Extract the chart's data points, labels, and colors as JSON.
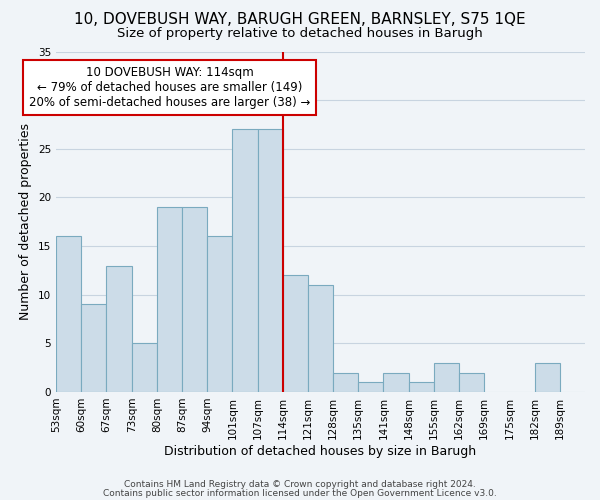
{
  "title": "10, DOVEBUSH WAY, BARUGH GREEN, BARNSLEY, S75 1QE",
  "subtitle": "Size of property relative to detached houses in Barugh",
  "xlabel": "Distribution of detached houses by size in Barugh",
  "ylabel": "Number of detached properties",
  "bar_color": "#ccdce8",
  "bar_edge_color": "#7aaabf",
  "categories": [
    "53sqm",
    "60sqm",
    "67sqm",
    "73sqm",
    "80sqm",
    "87sqm",
    "94sqm",
    "101sqm",
    "107sqm",
    "114sqm",
    "121sqm",
    "128sqm",
    "135sqm",
    "141sqm",
    "148sqm",
    "155sqm",
    "162sqm",
    "169sqm",
    "175sqm",
    "182sqm",
    "189sqm"
  ],
  "values": [
    16,
    9,
    13,
    5,
    19,
    19,
    16,
    27,
    27,
    12,
    11,
    2,
    1,
    2,
    1,
    3,
    2,
    0,
    0,
    3,
    0
  ],
  "highlight_index": 9,
  "highlight_line_color": "#cc0000",
  "ylim": [
    0,
    35
  ],
  "yticks": [
    0,
    5,
    10,
    15,
    20,
    25,
    30,
    35
  ],
  "annotation_title": "10 DOVEBUSH WAY: 114sqm",
  "annotation_line1": "← 79% of detached houses are smaller (149)",
  "annotation_line2": "20% of semi-detached houses are larger (38) →",
  "annotation_box_color": "#ffffff",
  "annotation_box_edge": "#cc0000",
  "footer_line1": "Contains HM Land Registry data © Crown copyright and database right 2024.",
  "footer_line2": "Contains public sector information licensed under the Open Government Licence v3.0.",
  "background_color": "#f0f4f8",
  "grid_color": "#c8d4e0",
  "title_fontsize": 11,
  "subtitle_fontsize": 9.5,
  "axis_label_fontsize": 9,
  "tick_fontsize": 7.5,
  "annotation_fontsize": 8.5,
  "footer_fontsize": 6.5
}
